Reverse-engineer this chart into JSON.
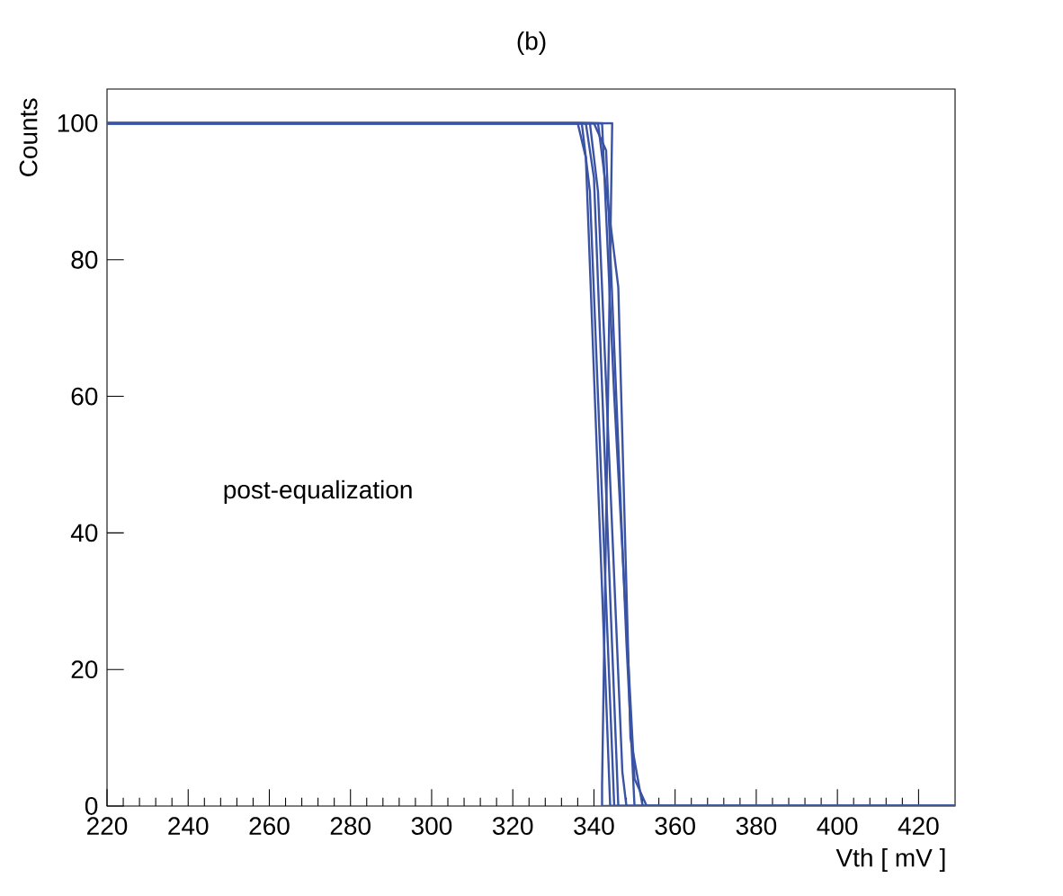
{
  "chart_data": {
    "type": "line",
    "title": "(b)",
    "xlabel": "Vth [ mV ]",
    "ylabel": "Counts",
    "xlim": [
      220,
      429
    ],
    "ylim": [
      0,
      105
    ],
    "xticks": [
      220,
      240,
      260,
      280,
      300,
      320,
      340,
      360,
      380,
      400,
      420
    ],
    "yticks": [
      0,
      20,
      40,
      60,
      80,
      100
    ],
    "annotations": [
      "post-equalization"
    ],
    "series": [
      {
        "color": "#3a53a4",
        "x": [
          220,
          336,
          338,
          344,
          429
        ],
        "values": [
          100,
          100,
          95,
          0,
          0
        ]
      },
      {
        "color": "#3a53a4",
        "x": [
          220,
          337,
          339,
          345,
          429
        ],
        "values": [
          100,
          100,
          90,
          0,
          0
        ]
      },
      {
        "color": "#3a53a4",
        "x": [
          220,
          338,
          340,
          346,
          429
        ],
        "values": [
          100,
          100,
          92,
          0,
          0
        ]
      },
      {
        "color": "#3a53a4",
        "x": [
          220,
          339,
          341,
          347,
          348,
          429
        ],
        "values": [
          100,
          100,
          90,
          5,
          0,
          0
        ]
      },
      {
        "color": "#3a53a4",
        "x": [
          220,
          340,
          343,
          348,
          350,
          429
        ],
        "values": [
          100,
          100,
          96,
          24,
          0,
          0
        ]
      },
      {
        "color": "#3a53a4",
        "x": [
          220,
          341,
          346,
          349,
          352,
          429
        ],
        "values": [
          100,
          100,
          76,
          10,
          0,
          0
        ]
      },
      {
        "color": "#3a53a4",
        "x": [
          220,
          342,
          345,
          350,
          353,
          429
        ],
        "values": [
          100,
          100,
          60,
          4,
          0,
          0
        ]
      },
      {
        "color": "#3a53a4",
        "x": [
          220,
          344.5,
          342,
          342,
          429
        ],
        "values": [
          100,
          100,
          3,
          0,
          0
        ]
      }
    ]
  }
}
